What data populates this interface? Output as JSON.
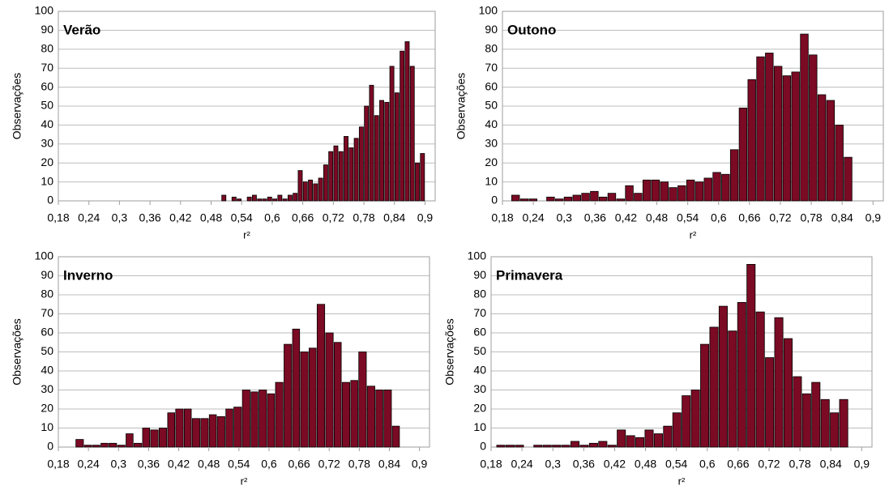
{
  "chart_data": [
    {
      "type": "histogram",
      "title": "Verão",
      "x_label": "r²",
      "y_label": "Observações",
      "color": "#7b0a24",
      "grid": true,
      "bins": [
        0.5,
        0.51,
        0.52,
        0.53,
        0.54,
        0.55,
        0.56,
        0.57,
        0.58,
        0.59,
        0.6,
        0.61,
        0.62,
        0.63,
        0.64,
        0.65,
        0.66,
        0.67,
        0.68,
        0.69,
        0.7,
        0.71,
        0.72,
        0.73,
        0.74,
        0.75,
        0.76,
        0.77,
        0.78,
        0.79,
        0.8,
        0.81,
        0.82,
        0.83,
        0.84,
        0.85,
        0.86,
        0.87,
        0.88,
        0.89,
        0.9
      ],
      "values": [
        3,
        0,
        2,
        1,
        0,
        2,
        3,
        1,
        1,
        2,
        1,
        3,
        1,
        3,
        4,
        16,
        10,
        11,
        9,
        12,
        19,
        26,
        29,
        26,
        34,
        28,
        33,
        39,
        50,
        61,
        45,
        53,
        52,
        71,
        57,
        79,
        84,
        71,
        20,
        25
      ],
      "xlim": [
        0.18,
        0.92
      ],
      "ylim": [
        0,
        100
      ],
      "xticks": [
        {
          "value": 0.18,
          "label": "0,18"
        },
        {
          "value": 0.24,
          "label": "0,24"
        },
        {
          "value": 0.3,
          "label": "0,3"
        },
        {
          "value": 0.36,
          "label": "0,36"
        },
        {
          "value": 0.42,
          "label": "0,42"
        },
        {
          "value": 0.48,
          "label": "0,48"
        },
        {
          "value": 0.54,
          "label": "0,54"
        },
        {
          "value": 0.6,
          "label": "0,6"
        },
        {
          "value": 0.66,
          "label": "0,66"
        },
        {
          "value": 0.72,
          "label": "0,72"
        },
        {
          "value": 0.78,
          "label": "0,78"
        },
        {
          "value": 0.84,
          "label": "0,84"
        },
        {
          "value": 0.9,
          "label": "0,9"
        }
      ],
      "yticks": [
        0,
        10,
        20,
        30,
        40,
        50,
        60,
        70,
        80,
        90,
        100
      ]
    },
    {
      "type": "histogram",
      "title": "Outono",
      "x_label": "r²",
      "y_label": "Observações",
      "color": "#7b0a24",
      "grid": true,
      "bins": [
        0.197,
        0.214,
        0.231,
        0.248,
        0.265,
        0.282,
        0.299,
        0.316,
        0.333,
        0.35,
        0.367,
        0.384,
        0.401,
        0.418,
        0.435,
        0.452,
        0.469,
        0.486,
        0.503,
        0.52,
        0.537,
        0.554,
        0.571,
        0.588,
        0.605,
        0.622,
        0.639,
        0.656,
        0.673,
        0.69,
        0.707,
        0.724,
        0.741,
        0.758,
        0.775,
        0.792,
        0.809,
        0.826,
        0.843,
        0.86
      ],
      "values": [
        3,
        1,
        1,
        0,
        2,
        1,
        2,
        3,
        4,
        5,
        2,
        4,
        1,
        8,
        4,
        11,
        11,
        10,
        7,
        8,
        11,
        10,
        12,
        15,
        14,
        27,
        49,
        64,
        76,
        78,
        71,
        66,
        68,
        88,
        77,
        56,
        53,
        40,
        23
      ],
      "xlim": [
        0.18,
        0.92
      ],
      "ylim": [
        0,
        100
      ],
      "xticks": [
        {
          "value": 0.18,
          "label": "0,18"
        },
        {
          "value": 0.24,
          "label": "0,24"
        },
        {
          "value": 0.3,
          "label": "0,3"
        },
        {
          "value": 0.36,
          "label": "0,36"
        },
        {
          "value": 0.42,
          "label": "0,42"
        },
        {
          "value": 0.48,
          "label": "0,48"
        },
        {
          "value": 0.54,
          "label": "0,54"
        },
        {
          "value": 0.6,
          "label": "0,6"
        },
        {
          "value": 0.66,
          "label": "0,66"
        },
        {
          "value": 0.72,
          "label": "0,72"
        },
        {
          "value": 0.78,
          "label": "0,78"
        },
        {
          "value": 0.84,
          "label": "0,84"
        },
        {
          "value": 0.9,
          "label": "0,9"
        }
      ],
      "yticks": [
        0,
        10,
        20,
        30,
        40,
        50,
        60,
        70,
        80,
        90,
        100
      ]
    },
    {
      "type": "histogram",
      "title": "Inverno",
      "x_label": "r²",
      "y_label": "Observações",
      "color": "#7b0a24",
      "grid": true,
      "bins": [
        0.214,
        0.231,
        0.247,
        0.264,
        0.28,
        0.297,
        0.314,
        0.33,
        0.347,
        0.363,
        0.38,
        0.397,
        0.413,
        0.43,
        0.446,
        0.463,
        0.48,
        0.496,
        0.513,
        0.529,
        0.546,
        0.563,
        0.579,
        0.596,
        0.612,
        0.629,
        0.646,
        0.662,
        0.679,
        0.695,
        0.712,
        0.729,
        0.745,
        0.762,
        0.778,
        0.795,
        0.812,
        0.828,
        0.845,
        0.861
      ],
      "values": [
        4,
        1,
        1,
        2,
        2,
        1,
        7,
        2,
        10,
        9,
        10,
        18,
        20,
        20,
        15,
        15,
        17,
        16,
        20,
        21,
        30,
        29,
        30,
        28,
        34,
        54,
        62,
        50,
        52,
        75,
        60,
        55,
        34,
        35,
        50,
        32,
        30,
        30,
        11
      ],
      "xlim": [
        0.18,
        0.92
      ],
      "ylim": [
        0,
        100
      ],
      "xticks": [
        {
          "value": 0.18,
          "label": "0,18"
        },
        {
          "value": 0.24,
          "label": "0,24"
        },
        {
          "value": 0.3,
          "label": "0,3"
        },
        {
          "value": 0.36,
          "label": "0,36"
        },
        {
          "value": 0.42,
          "label": "0,42"
        },
        {
          "value": 0.48,
          "label": "0,48"
        },
        {
          "value": 0.54,
          "label": "0,54"
        },
        {
          "value": 0.6,
          "label": "0,6"
        },
        {
          "value": 0.66,
          "label": "0,66"
        },
        {
          "value": 0.72,
          "label": "0,72"
        },
        {
          "value": 0.78,
          "label": "0,78"
        },
        {
          "value": 0.84,
          "label": "0,84"
        },
        {
          "value": 0.9,
          "label": "0,9"
        }
      ],
      "yticks": [
        0,
        10,
        20,
        30,
        40,
        50,
        60,
        70,
        80,
        90,
        100
      ]
    },
    {
      "type": "histogram",
      "title": "Primavera",
      "x_label": "r²",
      "y_label": "Observações",
      "color": "#7b0a24",
      "grid": true,
      "bins": [
        0.19,
        0.208,
        0.226,
        0.244,
        0.262,
        0.28,
        0.298,
        0.316,
        0.334,
        0.352,
        0.37,
        0.388,
        0.406,
        0.424,
        0.442,
        0.46,
        0.478,
        0.496,
        0.514,
        0.532,
        0.55,
        0.568,
        0.586,
        0.604,
        0.622,
        0.64,
        0.658,
        0.676,
        0.694,
        0.712,
        0.73,
        0.748,
        0.766,
        0.784,
        0.802,
        0.82,
        0.838,
        0.856,
        0.874
      ],
      "values": [
        1,
        1,
        1,
        0,
        1,
        1,
        1,
        1,
        3,
        1,
        2,
        3,
        1,
        9,
        6,
        5,
        9,
        7,
        11,
        18,
        27,
        30,
        54,
        63,
        74,
        61,
        76,
        96,
        71,
        47,
        68,
        57,
        37,
        28,
        34,
        25,
        18,
        25
      ],
      "xlim": [
        0.18,
        0.92
      ],
      "ylim": [
        0,
        100
      ],
      "xticks": [
        {
          "value": 0.18,
          "label": "0,18"
        },
        {
          "value": 0.24,
          "label": "0,24"
        },
        {
          "value": 0.3,
          "label": "0,3"
        },
        {
          "value": 0.36,
          "label": "0,36"
        },
        {
          "value": 0.42,
          "label": "0,42"
        },
        {
          "value": 0.48,
          "label": "0,48"
        },
        {
          "value": 0.54,
          "label": "0,54"
        },
        {
          "value": 0.6,
          "label": "0,6"
        },
        {
          "value": 0.66,
          "label": "0,66"
        },
        {
          "value": 0.72,
          "label": "0,72"
        },
        {
          "value": 0.78,
          "label": "0,78"
        },
        {
          "value": 0.84,
          "label": "0,84"
        },
        {
          "value": 0.9,
          "label": "0,9"
        }
      ],
      "yticks": [
        0,
        10,
        20,
        30,
        40,
        50,
        60,
        70,
        80,
        90,
        100
      ]
    }
  ]
}
